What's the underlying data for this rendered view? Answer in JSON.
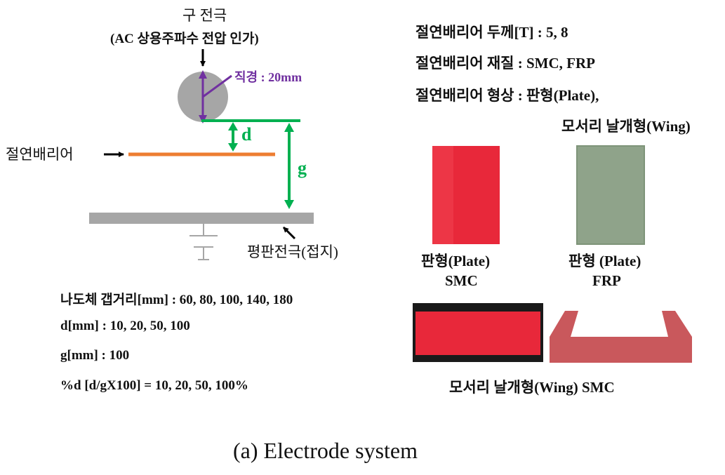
{
  "left": {
    "electrode_title": "구 전극",
    "electrode_subtitle": "(AC 상용주파수 전압 인가)",
    "diameter_label": "직경 : 20mm",
    "d_label": "d",
    "g_label": "g",
    "barrier_label": "절연배리어",
    "plane_label": "평판전극(접지)",
    "params": [
      "나도체 갭거리[mm] :  60, 80, 100, 140, 180",
      "d[mm] : 10, 20, 50, 100",
      "g[mm] : 100",
      " %d [d/gX100] = 10, 20, 50, 100%"
    ]
  },
  "right": {
    "specs": [
      "절연배리어 두께[T] : 5, 8",
      "절연배리어 재질 : SMC, FRP",
      "절연배리어 형상 : 판형(Plate),",
      "모서리 날개형(Wing)"
    ],
    "photo1_caption_line1": "판형(Plate)",
    "photo1_caption_line2": "SMC",
    "photo2_caption_line1": "판형 (Plate)",
    "photo2_caption_line2": "FRP",
    "wing_caption": "모서리 날개형(Wing) SMC"
  },
  "caption": "(a)  Electrode system",
  "colors": {
    "sphere": "#a6a6a6",
    "purple": "#7030a0",
    "green": "#00b050",
    "barrier": "#ed7d31",
    "plane": "#a6a6a6",
    "smc_red": "#e8283a",
    "frp_green": "#8fa38a",
    "wing_red": "#c9585c"
  }
}
